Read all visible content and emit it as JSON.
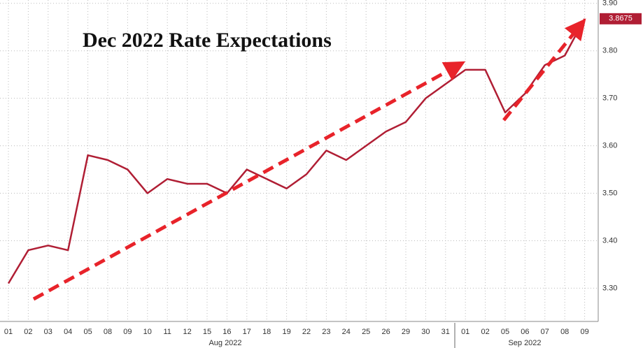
{
  "chart_data": {
    "type": "line",
    "title": "Dec 2022 Rate Expectations",
    "categories": [
      "01",
      "02",
      "03",
      "04",
      "05",
      "08",
      "09",
      "10",
      "11",
      "12",
      "15",
      "16",
      "17",
      "18",
      "19",
      "22",
      "23",
      "24",
      "25",
      "26",
      "29",
      "30",
      "31",
      "01",
      "02",
      "05",
      "06",
      "07",
      "08",
      "09"
    ],
    "months": [
      "Aug 2022",
      "Sep 2022"
    ],
    "series": [
      {
        "name": "Dec 2022 Rate Expectations",
        "color": "#b01e34",
        "values": [
          3.31,
          3.38,
          3.39,
          3.38,
          3.58,
          3.57,
          3.55,
          3.5,
          3.53,
          3.52,
          3.52,
          3.5,
          3.55,
          3.53,
          3.51,
          3.54,
          3.59,
          3.57,
          3.6,
          3.63,
          3.65,
          3.7,
          3.73,
          3.76,
          3.76,
          3.67,
          3.71,
          3.77,
          3.79,
          3.8675
        ]
      }
    ],
    "last_value": 3.8675,
    "ylim": [
      3.23,
      3.907
    ],
    "yticks": [
      {
        "value": 3.3,
        "label": "3.30"
      },
      {
        "value": 3.4,
        "label": "3.40"
      },
      {
        "value": 3.5,
        "label": "3.50"
      },
      {
        "value": 3.6,
        "label": "3.60"
      },
      {
        "value": 3.7,
        "label": "3.70"
      },
      {
        "value": 3.8,
        "label": "3.80"
      },
      {
        "value": 3.9,
        "label": "3.90"
      }
    ],
    "grid": true
  }
}
